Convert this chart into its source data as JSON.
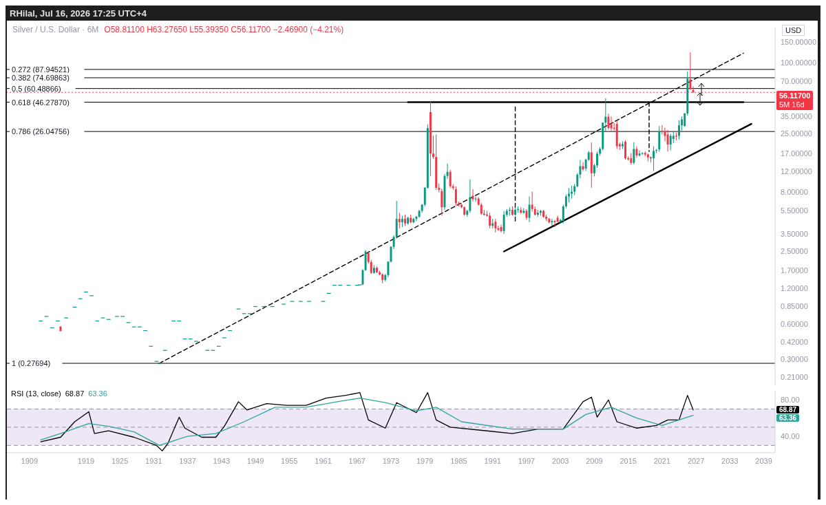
{
  "chart_data": [
    {
      "type": "candlestick",
      "title": "Silver / U.S. Dollar · 6M",
      "subtitle": "O58.81100 H63.27650 L55.39350 C56.11700 −2.46900 (−4.21%)",
      "ylabel": "USD",
      "log": "y",
      "tick_labels": "y",
      "x": [
        1911,
        1912,
        1913,
        1914,
        1914.5,
        1915.5,
        1917,
        1918,
        1919,
        1920,
        1921,
        1922,
        1923,
        1924.5,
        1925.5,
        1926.5,
        1927.5,
        1928.5,
        1929.5,
        1930.5,
        1931.5,
        1932,
        1933,
        1934.5,
        1935.5,
        1936.5,
        1937.5,
        1938.5,
        1940.5,
        1941.5,
        1942.5,
        1943.5,
        1944.5,
        1946,
        1947,
        1948,
        1949,
        1950.5,
        1952,
        1954,
        1955.5,
        1957,
        1958.5,
        1961,
        1962,
        1963,
        1964,
        1965.5,
        1967,
        1967.5,
        1968,
        1968.5,
        1969,
        1969.5,
        1970,
        1970.5,
        1971,
        1971.5,
        1972,
        1972.5,
        1973,
        1973.5,
        1974,
        1974.5,
        1975,
        1975.5,
        1976,
        1976.5,
        1977,
        1977.5,
        1978,
        1978.5,
        1979,
        1979.5,
        1980,
        1980.5,
        1981,
        1981.5,
        1982,
        1982.5,
        1983,
        1983.5,
        1984,
        1984.5,
        1985,
        1985.5,
        1986,
        1986.5,
        1987,
        1987.5,
        1988,
        1988.5,
        1989,
        1989.5,
        1990,
        1990.5,
        1991,
        1991.5,
        1992,
        1992.5,
        1993,
        1993.5,
        1994,
        1994.5,
        1995,
        1995.5,
        1996,
        1996.5,
        1997,
        1997.5,
        1998,
        1998.5,
        1999,
        1999.5,
        2000,
        2000.5,
        2001,
        2001.5,
        2002,
        2002.5,
        2003,
        2003.5,
        2004,
        2004.5,
        2005,
        2005.5,
        2006,
        2006.5,
        2007,
        2007.5,
        2008,
        2008.5,
        2009,
        2009.5,
        2010,
        2010.5,
        2011,
        2011.5,
        2012,
        2012.5,
        2013,
        2013.5,
        2014,
        2014.5,
        2015,
        2015.5,
        2016,
        2016.5,
        2017,
        2017.5,
        2018,
        2018.5,
        2019,
        2019.5,
        2020,
        2020.5,
        2021,
        2021.5,
        2022,
        2022.5,
        2023,
        2023.5,
        2024,
        2024.5,
        2025,
        2025.5,
        2026,
        2026.5
      ],
      "ohlc": [
        [
          0.64,
          0.64,
          0.64,
          0.64
        ],
        [
          0.7,
          0.7,
          0.7,
          0.7
        ],
        [
          0.56,
          0.56,
          0.56,
          0.56
        ],
        [
          0.64,
          0.64,
          0.64,
          0.64
        ],
        [
          0.57,
          0.57,
          0.52,
          0.52
        ],
        [
          0.68,
          0.68,
          0.68,
          0.68
        ],
        [
          0.84,
          0.84,
          0.84,
          0.84
        ],
        [
          0.99,
          0.99,
          0.99,
          0.99
        ],
        [
          1.13,
          1.13,
          1.13,
          1.13
        ],
        [
          1.05,
          1.05,
          1.05,
          1.05
        ],
        [
          0.64,
          0.64,
          0.64,
          0.64
        ],
        [
          0.68,
          0.68,
          0.68,
          0.68
        ],
        [
          0.66,
          0.66,
          0.66,
          0.66
        ],
        [
          0.7,
          0.7,
          0.7,
          0.7
        ],
        [
          0.7,
          0.7,
          0.7,
          0.7
        ],
        [
          0.62,
          0.62,
          0.62,
          0.62
        ],
        [
          0.57,
          0.57,
          0.57,
          0.57
        ],
        [
          0.57,
          0.57,
          0.57,
          0.57
        ],
        [
          0.53,
          0.53,
          0.53,
          0.53
        ],
        [
          0.39,
          0.39,
          0.39,
          0.39
        ],
        [
          0.29,
          0.29,
          0.29,
          0.29
        ],
        [
          0.28,
          0.28,
          0.28,
          0.28
        ],
        [
          0.36,
          0.36,
          0.36,
          0.36
        ],
        [
          0.64,
          0.64,
          0.64,
          0.64
        ],
        [
          0.64,
          0.64,
          0.64,
          0.64
        ],
        [
          0.45,
          0.45,
          0.45,
          0.45
        ],
        [
          0.45,
          0.45,
          0.45,
          0.45
        ],
        [
          0.43,
          0.43,
          0.43,
          0.43
        ],
        [
          0.36,
          0.36,
          0.36,
          0.36
        ],
        [
          0.36,
          0.36,
          0.36,
          0.36
        ],
        [
          0.39,
          0.39,
          0.39,
          0.39
        ],
        [
          0.46,
          0.46,
          0.46,
          0.46
        ],
        [
          0.53,
          0.53,
          0.53,
          0.53
        ],
        [
          0.81,
          0.81,
          0.81,
          0.81
        ],
        [
          0.74,
          0.74,
          0.74,
          0.74
        ],
        [
          0.74,
          0.74,
          0.74,
          0.74
        ],
        [
          0.85,
          0.85,
          0.85,
          0.85
        ],
        [
          0.85,
          0.85,
          0.85,
          0.85
        ],
        [
          0.85,
          0.85,
          0.85,
          0.85
        ],
        [
          0.89,
          0.89,
          0.89,
          0.89
        ],
        [
          0.94,
          0.94,
          0.94,
          0.94
        ],
        [
          0.94,
          0.94,
          0.94,
          0.94
        ],
        [
          0.94,
          0.94,
          0.94,
          0.94
        ],
        [
          0.94,
          0.94,
          0.94,
          0.94
        ],
        [
          1.1,
          1.1,
          1.1,
          1.1
        ],
        [
          1.29,
          1.29,
          1.29,
          1.29
        ],
        [
          1.29,
          1.29,
          1.29,
          1.29
        ],
        [
          1.29,
          1.29,
          1.29,
          1.29
        ],
        [
          1.29,
          1.29,
          1.29,
          1.29
        ],
        [
          1.3,
          1.3,
          1.3,
          1.3
        ],
        [
          1.3,
          1.75,
          1.29,
          1.72
        ],
        [
          1.72,
          2.55,
          1.7,
          2.48
        ],
        [
          2.4,
          2.5,
          1.95,
          2.02
        ],
        [
          2.02,
          2.1,
          1.6,
          1.63
        ],
        [
          1.63,
          1.9,
          1.6,
          1.8
        ],
        [
          1.8,
          1.85,
          1.62,
          1.65
        ],
        [
          1.65,
          1.7,
          1.55,
          1.58
        ],
        [
          1.58,
          1.62,
          1.33,
          1.42
        ],
        [
          1.42,
          1.6,
          1.38,
          1.56
        ],
        [
          1.56,
          2.05,
          1.5,
          2.03
        ],
        [
          2.03,
          2.75,
          2.0,
          2.72
        ],
        [
          2.72,
          3.4,
          2.6,
          3.3
        ],
        [
          3.3,
          6.7,
          3.2,
          4.7
        ],
        [
          4.7,
          5.3,
          3.9,
          4.4
        ],
        [
          4.4,
          5.0,
          4.0,
          4.7
        ],
        [
          4.7,
          5.1,
          4.1,
          4.3
        ],
        [
          4.3,
          4.9,
          4.2,
          4.8
        ],
        [
          4.8,
          5.1,
          4.3,
          4.4
        ],
        [
          4.4,
          4.8,
          4.3,
          4.7
        ],
        [
          4.7,
          5.0,
          4.5,
          4.9
        ],
        [
          4.9,
          5.6,
          4.8,
          5.5
        ],
        [
          5.5,
          6.3,
          5.3,
          6.2
        ],
        [
          6.2,
          8.8,
          6.0,
          8.65
        ],
        [
          8.65,
          30.0,
          8.5,
          27.9
        ],
        [
          38.1,
          46.8,
          10.9,
          16.9
        ],
        [
          16.9,
          24.0,
          15.2,
          15.8
        ],
        [
          15.8,
          24.6,
          8.3,
          8.65
        ],
        [
          8.65,
          9.4,
          7.9,
          8.3
        ],
        [
          8.1,
          8.5,
          5.0,
          5.9
        ],
        [
          5.9,
          11.3,
          5.6,
          10.9
        ],
        [
          10.9,
          13.9,
          10.3,
          11.8
        ],
        [
          11.8,
          12.3,
          8.6,
          8.9
        ],
        [
          8.9,
          9.3,
          8.3,
          8.6
        ],
        [
          8.4,
          8.9,
          6.1,
          6.4
        ],
        [
          6.4,
          6.6,
          6.0,
          6.2
        ],
        [
          6.2,
          6.3,
          5.8,
          5.9
        ],
        [
          5.9,
          6.0,
          5.0,
          5.1
        ],
        [
          5.1,
          5.6,
          4.9,
          5.5
        ],
        [
          5.5,
          10.2,
          5.3,
          7.2
        ],
        [
          7.4,
          8.4,
          6.6,
          6.9
        ],
        [
          6.9,
          7.3,
          6.6,
          7.0
        ],
        [
          7.0,
          7.2,
          6.1,
          6.2
        ],
        [
          6.2,
          6.4,
          5.1,
          5.2
        ],
        [
          5.2,
          5.6,
          5.0,
          5.1
        ],
        [
          5.1,
          5.5,
          4.9,
          5.0
        ],
        [
          5.0,
          5.3,
          3.9,
          4.1
        ],
        [
          4.1,
          4.7,
          3.9,
          4.3
        ],
        [
          4.45,
          4.7,
          3.6,
          3.9
        ],
        [
          3.9,
          4.1,
          3.7,
          3.8
        ],
        [
          4.0,
          4.2,
          3.6,
          3.7
        ],
        [
          3.7,
          5.5,
          3.5,
          5.1
        ],
        [
          5.1,
          5.7,
          4.9,
          5.5
        ],
        [
          5.5,
          5.9,
          5.0,
          5.6
        ],
        [
          5.6,
          6.0,
          5.0,
          5.1
        ],
        [
          5.1,
          5.8,
          5.0,
          5.6
        ],
        [
          5.6,
          6.0,
          5.3,
          5.7
        ],
        [
          5.6,
          5.9,
          5.2,
          5.3
        ],
        [
          5.3,
          5.8,
          5.2,
          5.5
        ],
        [
          5.5,
          5.7,
          4.6,
          4.8
        ],
        [
          4.8,
          7.3,
          4.4,
          6.2
        ],
        [
          6.2,
          8.0,
          5.4,
          5.7
        ],
        [
          5.7,
          6.0,
          5.0,
          5.1
        ],
        [
          5.1,
          5.6,
          4.9,
          5.3
        ],
        [
          5.3,
          5.6,
          5.0,
          5.5
        ],
        [
          5.5,
          5.6,
          4.8,
          4.9
        ],
        [
          4.9,
          5.1,
          4.5,
          4.7
        ],
        [
          4.7,
          4.8,
          4.3,
          4.4
        ],
        [
          4.4,
          4.7,
          4.1,
          4.5
        ],
        [
          4.5,
          4.6,
          4.0,
          4.4
        ],
        [
          4.8,
          5.0,
          4.4,
          4.45
        ],
        [
          4.45,
          4.7,
          4.3,
          4.6
        ],
        [
          4.5,
          6.2,
          4.3,
          6.0
        ],
        [
          6.0,
          7.6,
          5.8,
          7.3
        ],
        [
          7.3,
          8.6,
          6.5,
          7.7
        ],
        [
          7.7,
          9.0,
          7.0,
          8.0
        ],
        [
          8.0,
          9.3,
          7.5,
          8.9
        ],
        [
          8.9,
          11.5,
          8.7,
          11.2
        ],
        [
          11.2,
          14.9,
          10.4,
          13.2
        ],
        [
          13.2,
          14.3,
          12.0,
          12.4
        ],
        [
          12.6,
          15.3,
          12.0,
          15.0
        ],
        [
          15.0,
          17.8,
          14.6,
          17.3
        ],
        [
          17.3,
          21.0,
          8.65,
          11.5
        ],
        [
          11.5,
          13.8,
          10.8,
          13.4
        ],
        [
          13.4,
          17.6,
          12.8,
          16.9
        ],
        [
          16.9,
          19.2,
          16.2,
          18.5
        ],
        [
          18.5,
          31.2,
          18.0,
          31.0
        ],
        [
          31.0,
          49.9,
          26.0,
          34.8
        ],
        [
          34.8,
          37.0,
          27.0,
          27.9
        ],
        [
          30.2,
          35.0,
          26.5,
          27.7
        ],
        [
          28.0,
          31.0,
          26.5,
          27.7
        ],
        [
          30.2,
          32.0,
          18.5,
          19.5
        ],
        [
          20.3,
          21.0,
          18.2,
          19.5
        ],
        [
          19.5,
          21.5,
          18.5,
          20.3
        ],
        [
          21.3,
          22.0,
          15.0,
          15.4
        ],
        [
          15.4,
          16.0,
          14.8,
          15.1
        ],
        [
          15.4,
          17.0,
          13.6,
          14.1
        ],
        [
          14.1,
          21.1,
          13.7,
          18.5
        ],
        [
          18.5,
          19.5,
          15.6,
          16.3
        ],
        [
          16.3,
          18.0,
          15.9,
          16.9
        ],
        [
          16.9,
          17.3,
          16.5,
          17.1
        ],
        [
          17.1,
          17.6,
          16.0,
          16.6
        ],
        [
          16.6,
          16.9,
          14.5,
          15.7
        ],
        [
          15.7,
          16.0,
          14.2,
          15.4
        ],
        [
          15.4,
          19.5,
          12.0,
          17.8
        ],
        [
          17.8,
          18.5,
          17.0,
          18.1
        ],
        [
          18.3,
          29.0,
          17.5,
          26.2
        ],
        [
          26.2,
          29.5,
          24.5,
          26.0
        ],
        [
          26.2,
          28.0,
          21.5,
          23.9
        ],
        [
          24.6,
          26.9,
          17.6,
          20.2
        ],
        [
          20.2,
          24.9,
          18.0,
          23.9
        ],
        [
          22.5,
          26.0,
          20.7,
          23.9
        ],
        [
          24.0,
          25.5,
          21.9,
          23.6
        ],
        [
          23.9,
          32.5,
          22.3,
          29.4
        ],
        [
          29.4,
          35.0,
          26.5,
          33.0
        ],
        [
          29.0,
          37.5,
          28.5,
          37.1
        ],
        [
          37.1,
          84.6,
          35.5,
          73.4
        ],
        [
          72.4,
          122.9,
          59.0,
          59.7
        ],
        [
          58.811,
          63.2765,
          55.3935,
          56.117
        ]
      ],
      "series": [
        {
          "type": "line",
          "x": [
            1932,
            2035.4
          ],
          "values": [
            0.27694,
            121
          ],
          "color": "#000000",
          "line_style": "dashed"
        },
        {
          "type": "line",
          "x": [
            1993,
            2036.8
          ],
          "values": [
            2.48,
            30.2
          ],
          "color": "#000000",
          "line_style": "solid"
        },
        {
          "type": "line",
          "x": [
            1976,
            2035.4
          ],
          "values": [
            46.2787,
            46.2787
          ],
          "color": "#000000",
          "line_style": "solid"
        },
        {
          "type": "line",
          "x": [
            1995,
            1995
          ],
          "values": [
            42.2,
            4.5
          ],
          "color": "#000000",
          "line_style": "dashed"
        },
        {
          "type": "line",
          "x": [
            2018.7,
            2018.7
          ],
          "values": [
            46.2,
            17.6
          ],
          "color": "#000000",
          "line_style": "dashed"
        }
      ],
      "ref_lines": [
        {
          "axis": "y",
          "value": 87.94521,
          "label": "0.272 (87.94521)"
        },
        {
          "axis": "y",
          "value": 74.69863,
          "label": "0.382 (74.69863)"
        },
        {
          "axis": "y",
          "value": 60.48866,
          "label": "0.5 (60.48866)"
        },
        {
          "axis": "y",
          "value": 46.2787,
          "label": "0.618 (46.27870)"
        },
        {
          "axis": "y",
          "value": 26.04756,
          "label": "0.786 (26.04756)"
        },
        {
          "axis": "y",
          "value": 0.27694,
          "label": "1 (0.27694)"
        },
        {
          "axis": "y",
          "value": 56.117,
          "color": "#f23645",
          "line_style": "dotted"
        }
      ],
      "annotations": [
        "RHilal, Jul 16, 2026 17:25 UTC+4",
        "56.11700",
        "5M 16d"
      ],
      "xlim": [
        1905,
        2041
      ],
      "xticks": [
        1909,
        1919,
        1925,
        1931,
        1937,
        1943,
        1949,
        1955,
        1961,
        1967,
        1973,
        1979,
        1985,
        1991,
        1997,
        2003,
        2009,
        2015,
        2021,
        2027,
        2033,
        2039
      ],
      "ylim": [
        0.18,
        200
      ],
      "yticks": [
        {
          "value": 0.21,
          "label": "0.21000"
        },
        {
          "value": 0.3,
          "label": "0.30000"
        },
        {
          "value": 0.42,
          "label": "0.42000"
        },
        {
          "value": 0.6,
          "label": "0.60000"
        },
        {
          "value": 0.85,
          "label": "0.85000"
        },
        {
          "value": 1.2,
          "label": "1.20000"
        },
        {
          "value": 1.7,
          "label": "1.70000"
        },
        {
          "value": 2.5,
          "label": "2.50000"
        },
        {
          "value": 3.5,
          "label": "3.50000"
        },
        {
          "value": 5.5,
          "label": "5.50000"
        },
        {
          "value": 8,
          "label": "8.00000"
        },
        {
          "value": 12,
          "label": "12.00000"
        },
        {
          "value": 17,
          "label": "17.00000"
        },
        {
          "value": 25,
          "label": "25.00000"
        },
        {
          "value": 35,
          "label": "35.00000"
        },
        {
          "value": 70,
          "label": "70.00000"
        },
        {
          "value": 100,
          "label": "100.00000"
        },
        {
          "value": 150,
          "label": "150.00000"
        }
      ]
    },
    {
      "type": "line",
      "series": [
        {
          "name": "RSI (13, close)",
          "color": "#000000",
          "x": [
            1911,
            1914.5,
            1917,
            1919.5,
            1920.5,
            1923,
            1927.5,
            1931.5,
            1932.5,
            1933.5,
            1935.5,
            1936.5,
            1939.5,
            1942,
            1943.5,
            1946,
            1947.5,
            1951,
            1954.5,
            1958,
            1961.5,
            1965,
            1967.5,
            1969,
            1972,
            1974,
            1977.5,
            1979.5,
            1981,
            1983.5,
            1990,
            1994.5,
            1999,
            2003.5,
            2007,
            2008.5,
            2009.5,
            2011.5,
            2013,
            2016.5,
            2020,
            2022,
            2024,
            2025.5,
            2026.5
          ],
          "values": [
            34,
            39,
            56,
            67,
            43,
            46,
            39,
            30,
            24,
            32,
            61,
            49,
            39,
            39,
            51,
            78,
            69,
            76,
            74,
            74,
            82,
            85,
            88,
            58,
            49,
            77,
            66,
            88,
            58,
            50,
            46,
            43,
            48,
            48,
            78,
            83,
            61,
            80,
            56,
            49,
            52,
            58,
            58,
            85,
            69
          ]
        },
        {
          "color": "#2ba69a",
          "x": [
            1911,
            1914.5,
            1919.5,
            1923,
            1927.5,
            1932,
            1937,
            1942,
            1947,
            1952.5,
            1958,
            1963.5,
            1967.5,
            1972,
            1977.5,
            1981,
            1985.5,
            1994.5,
            2003.5,
            2007.5,
            2012,
            2016.5,
            2021,
            2026.5
          ],
          "values": [
            36,
            43,
            54,
            51,
            45,
            30,
            40,
            43,
            56,
            72,
            72,
            78,
            82,
            77,
            68,
            72,
            56,
            48,
            48,
            64,
            72,
            60,
            52,
            63
          ]
        }
      ],
      "annotations": [
        "68.87",
        "63.36"
      ],
      "ref_lines": [
        {
          "axis": "y",
          "value": 70,
          "color": "#9598a1",
          "line_style": "dashed"
        },
        {
          "axis": "y",
          "value": 50,
          "color": "#9598a1",
          "line_style": "dashed"
        },
        {
          "axis": "y",
          "value": 30,
          "color": "#9598a1",
          "line_style": "dashed"
        }
      ],
      "bands": [
        {
          "axis": "y",
          "from": 30,
          "to": 70,
          "color": "#ede7f6"
        }
      ],
      "xlim": [
        1905,
        2041
      ],
      "xticks": [
        1909,
        1919,
        1925,
        1931,
        1937,
        1943,
        1949,
        1955,
        1961,
        1967,
        1973,
        1979,
        1985,
        1991,
        1997,
        2003,
        2009,
        2015,
        2021,
        2027,
        2033,
        2039
      ],
      "ylim": [
        22,
        90
      ],
      "yticks": [
        {
          "value": 40,
          "label": "40.00"
        },
        {
          "value": 80,
          "label": "80.00"
        }
      ]
    }
  ]
}
